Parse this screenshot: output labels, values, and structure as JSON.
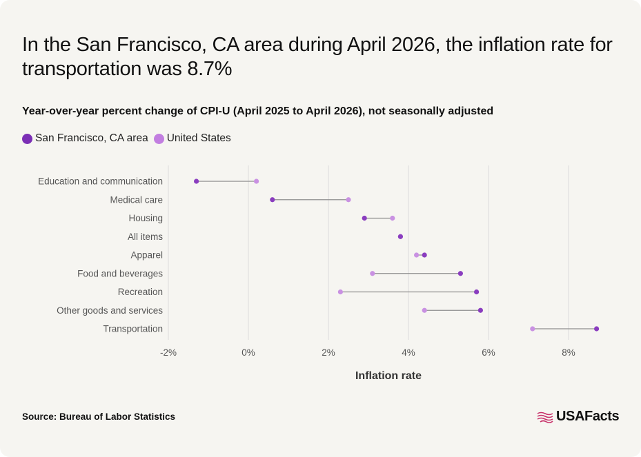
{
  "title": "In the San Francisco, CA area during April 2026, the inflation rate for transportation was 8.7%",
  "subtitle": "Year-over-year percent change of CPI-U (April 2025 to April 2026), not seasonally adjusted",
  "legend": [
    {
      "label": "San Francisco, CA area",
      "color": "#7b2fb5"
    },
    {
      "label": "United States",
      "color": "#c27ee0"
    }
  ],
  "source": "Source: Bureau of Labor Statistics",
  "logo_text": "USAFacts",
  "colors": {
    "sf": "#8a3dbf",
    "us": "#c991e2",
    "connector": "#8e8e8e",
    "gridline": "#dcdcdc",
    "logo_icon": "#c8326b"
  },
  "chart_data": {
    "type": "dumbbell",
    "title": "In the San Francisco, CA area during April 2026, the inflation rate for transportation was 8.7%",
    "subtitle": "Year-over-year percent change of CPI-U (April 2025 to April 2026), not seasonally adjusted",
    "xlabel": "Inflation rate",
    "ylabel": "",
    "xlim": [
      -2,
      9
    ],
    "xticks": [
      -2,
      0,
      2,
      4,
      6,
      8
    ],
    "xtick_labels": [
      "-2%",
      "0%",
      "2%",
      "4%",
      "6%",
      "8%"
    ],
    "grid": "vertical",
    "legend_position": "top-left",
    "categories": [
      "Education and communication",
      "Medical care",
      "Housing",
      "All items",
      "Apparel",
      "Food and beverages",
      "Recreation",
      "Other goods and services",
      "Transportation"
    ],
    "series": [
      {
        "name": "San Francisco, CA area",
        "values": [
          -1.3,
          0.6,
          2.9,
          3.8,
          4.4,
          5.3,
          5.7,
          5.8,
          8.7
        ]
      },
      {
        "name": "United States",
        "values": [
          0.2,
          2.5,
          3.6,
          3.8,
          4.2,
          3.1,
          2.3,
          4.4,
          7.1
        ]
      }
    ]
  }
}
